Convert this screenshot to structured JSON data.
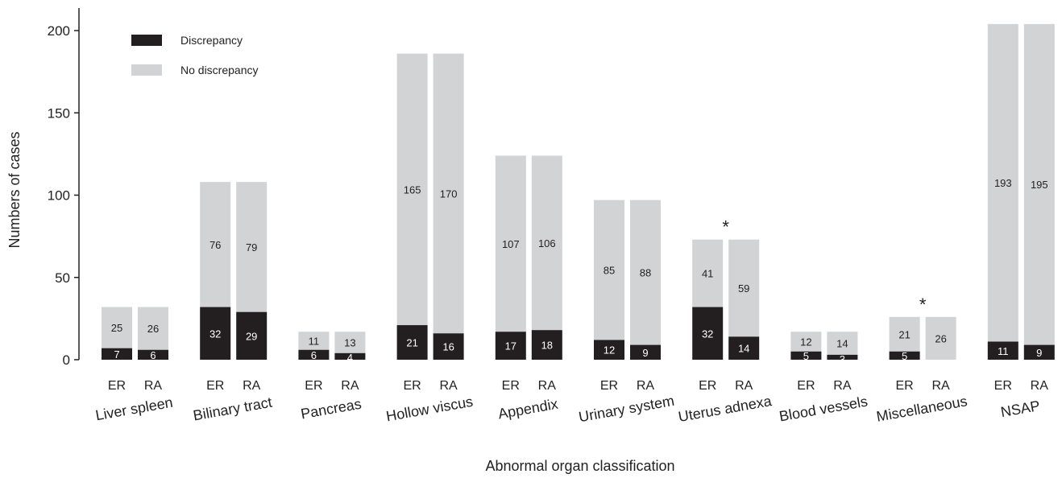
{
  "chart_data": {
    "type": "bar",
    "stacked": true,
    "ylabel": "Numbers of cases",
    "xlabel": "Abnormal organ classification",
    "ylim": [
      0,
      210
    ],
    "yticks": [
      0,
      50,
      100,
      150,
      200
    ],
    "legend_position": "top-left",
    "colors": {
      "discrepancy": "#231f20",
      "no_discrepancy": "#d1d3d4",
      "label_on_dark": "#ffffff",
      "label_on_light": "#231f20"
    },
    "series": [
      {
        "name": "Discrepancy",
        "key": "discrepancy"
      },
      {
        "name": "No discrepancy",
        "key": "no_discrepancy"
      }
    ],
    "groups": [
      {
        "name": "Liver spleen",
        "marker": "",
        "bars": [
          {
            "label": "ER",
            "discrepancy": 7,
            "no_discrepancy": 25
          },
          {
            "label": "RA",
            "discrepancy": 6,
            "no_discrepancy": 26
          }
        ]
      },
      {
        "name": "Bilinary tract",
        "marker": "",
        "bars": [
          {
            "label": "ER",
            "discrepancy": 32,
            "no_discrepancy": 76
          },
          {
            "label": "RA",
            "discrepancy": 29,
            "no_discrepancy": 79
          }
        ]
      },
      {
        "name": "Pancreas",
        "marker": "",
        "bars": [
          {
            "label": "ER",
            "discrepancy": 6,
            "no_discrepancy": 11
          },
          {
            "label": "RA",
            "discrepancy": 4,
            "no_discrepancy": 13
          }
        ]
      },
      {
        "name": "Hollow viscus",
        "marker": "",
        "bars": [
          {
            "label": "ER",
            "discrepancy": 21,
            "no_discrepancy": 165
          },
          {
            "label": "RA",
            "discrepancy": 16,
            "no_discrepancy": 170
          }
        ]
      },
      {
        "name": "Appendix",
        "marker": "",
        "bars": [
          {
            "label": "ER",
            "discrepancy": 17,
            "no_discrepancy": 107
          },
          {
            "label": "RA",
            "discrepancy": 18,
            "no_discrepancy": 106
          }
        ]
      },
      {
        "name": "Urinary system",
        "marker": "",
        "bars": [
          {
            "label": "ER",
            "discrepancy": 12,
            "no_discrepancy": 85
          },
          {
            "label": "RA",
            "discrepancy": 9,
            "no_discrepancy": 88
          }
        ]
      },
      {
        "name": "Uterus adnexa",
        "marker": "*",
        "bars": [
          {
            "label": "ER",
            "discrepancy": 32,
            "no_discrepancy": 41
          },
          {
            "label": "RA",
            "discrepancy": 14,
            "no_discrepancy": 59
          }
        ]
      },
      {
        "name": "Blood vessels",
        "marker": "",
        "bars": [
          {
            "label": "ER",
            "discrepancy": 5,
            "no_discrepancy": 12
          },
          {
            "label": "RA",
            "discrepancy": 3,
            "no_discrepancy": 14
          }
        ]
      },
      {
        "name": "Miscellaneous",
        "marker": "*",
        "bars": [
          {
            "label": "ER",
            "discrepancy": 5,
            "no_discrepancy": 21
          },
          {
            "label": "RA",
            "discrepancy": 0,
            "no_discrepancy": 26
          }
        ]
      },
      {
        "name": "NSAP",
        "marker": "",
        "bars": [
          {
            "label": "ER",
            "discrepancy": 11,
            "no_discrepancy": 193
          },
          {
            "label": "RA",
            "discrepancy": 9,
            "no_discrepancy": 195
          }
        ]
      }
    ]
  }
}
